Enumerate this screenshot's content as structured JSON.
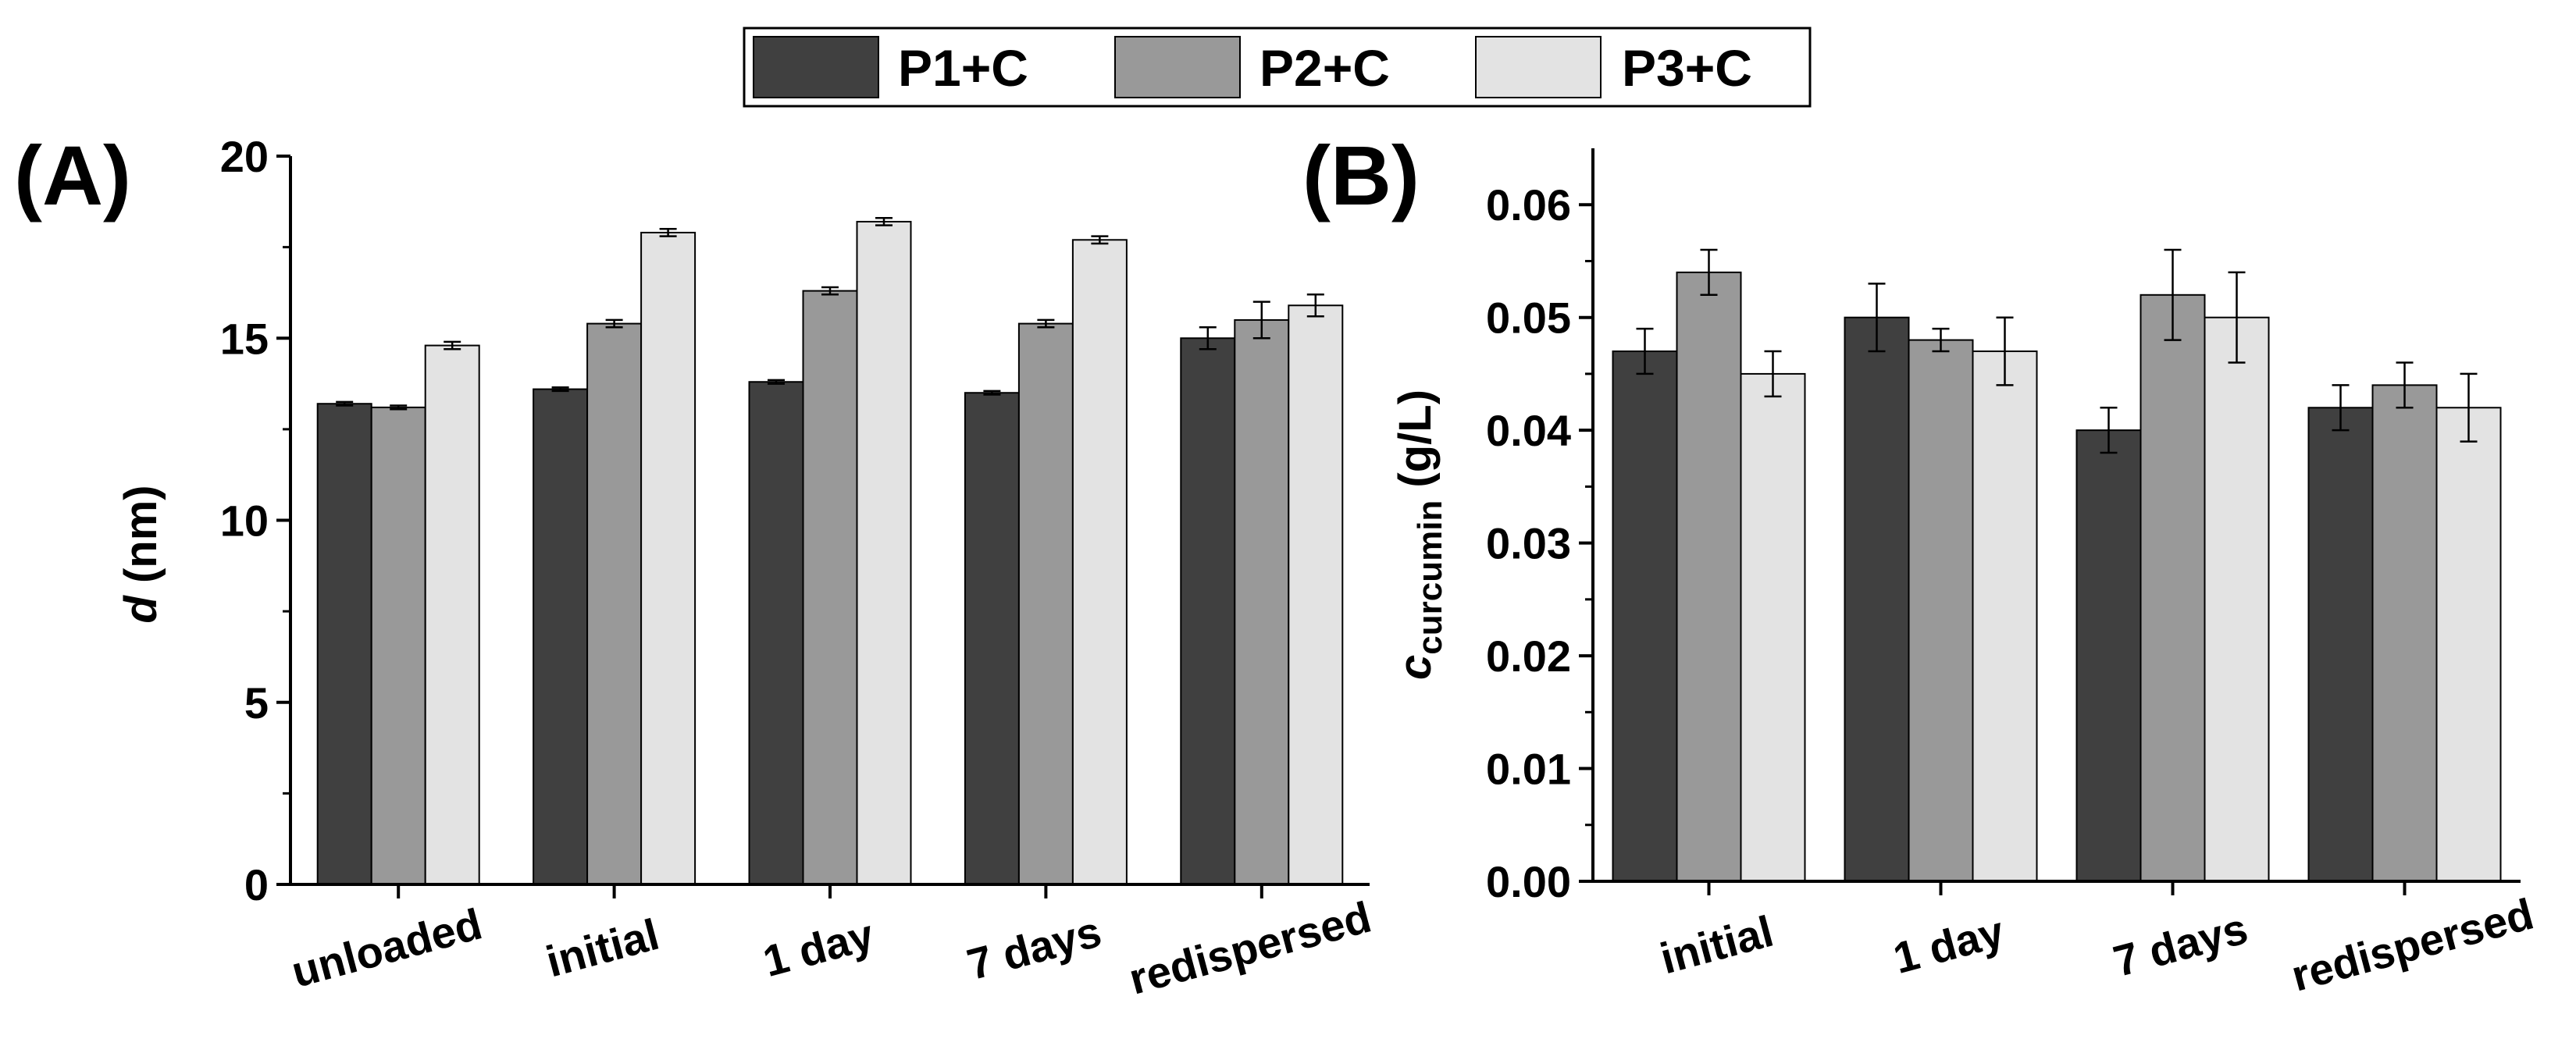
{
  "legend": {
    "entries": [
      {
        "label": "P1+C",
        "color": "#404040"
      },
      {
        "label": "P2+C",
        "color": "#999999"
      },
      {
        "label": "P3+C",
        "color": "#e3e3e3"
      }
    ],
    "position": "top-center"
  },
  "chart_data": [
    {
      "type": "bar",
      "panel_label": "(A)",
      "title": "",
      "xlabel": "",
      "ylabel": {
        "symbol": "d",
        "rest": " (nm)"
      },
      "ylim": [
        0,
        20
      ],
      "yticks": [
        "0",
        "5",
        "10",
        "15",
        "20"
      ],
      "yticks_values": [
        0,
        5,
        10,
        15,
        20
      ],
      "categories": [
        "unloaded",
        "initial",
        "1 day",
        "7 days",
        "redispersed"
      ],
      "series": [
        {
          "name": "P1+C",
          "values": [
            13.2,
            13.6,
            13.8,
            13.5,
            15.0
          ],
          "errors": [
            0.05,
            0.05,
            0.05,
            0.05,
            0.3
          ]
        },
        {
          "name": "P2+C",
          "values": [
            13.1,
            15.4,
            16.3,
            15.4,
            15.5
          ],
          "errors": [
            0.05,
            0.1,
            0.1,
            0.1,
            0.5
          ]
        },
        {
          "name": "P3+C",
          "values": [
            14.8,
            17.9,
            18.2,
            17.7,
            15.9
          ],
          "errors": [
            0.1,
            0.1,
            0.1,
            0.1,
            0.3
          ]
        }
      ],
      "grid": false
    },
    {
      "type": "bar",
      "panel_label": "(B)",
      "title": "",
      "xlabel": "",
      "ylabel": {
        "symbol": "c",
        "subscript": "curcumin",
        "rest": " (g/L)"
      },
      "ylim": [
        0,
        0.065
      ],
      "yticks": [
        "0.00",
        "0.01",
        "0.02",
        "0.03",
        "0.04",
        "0.05",
        "0.06"
      ],
      "yticks_values": [
        0,
        0.01,
        0.02,
        0.03,
        0.04,
        0.05,
        0.06
      ],
      "categories": [
        "initial",
        "1 day",
        "7 days",
        "redispersed"
      ],
      "series": [
        {
          "name": "P1+C",
          "values": [
            0.047,
            0.05,
            0.04,
            0.042
          ],
          "errors": [
            0.002,
            0.003,
            0.002,
            0.002
          ]
        },
        {
          "name": "P2+C",
          "values": [
            0.054,
            0.048,
            0.052,
            0.044
          ],
          "errors": [
            0.002,
            0.001,
            0.004,
            0.002
          ]
        },
        {
          "name": "P3+C",
          "values": [
            0.045,
            0.047,
            0.05,
            0.042
          ],
          "errors": [
            0.002,
            0.003,
            0.004,
            0.003
          ]
        }
      ],
      "grid": false
    }
  ]
}
